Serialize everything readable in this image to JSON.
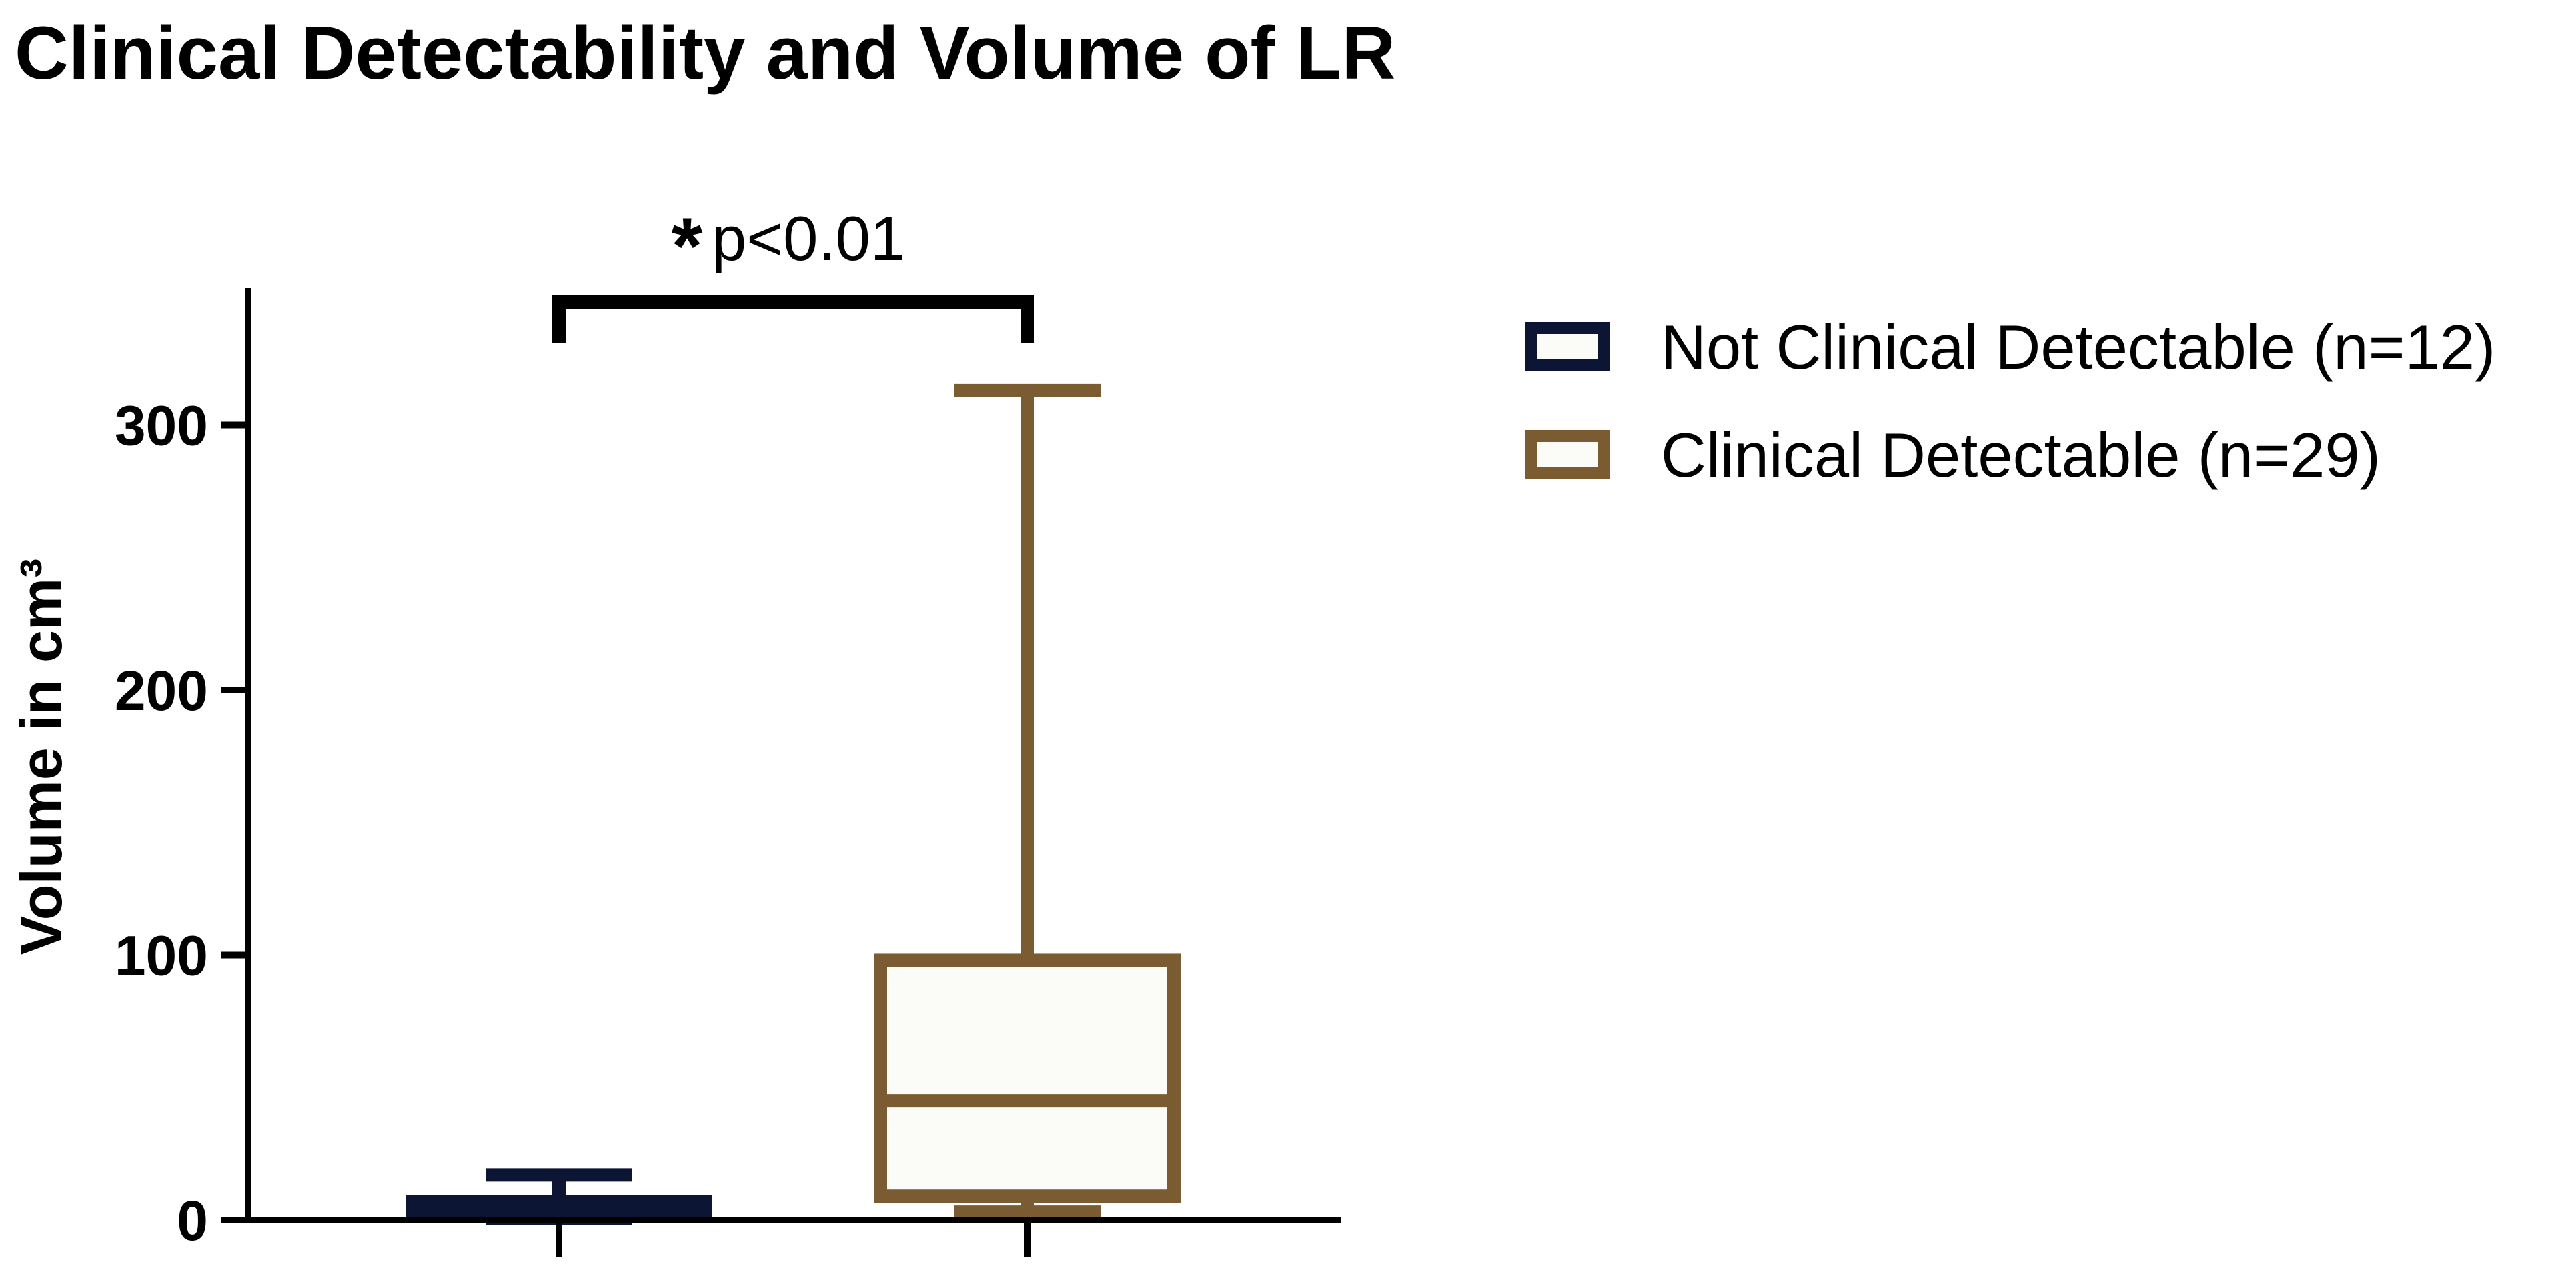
{
  "chart_data": {
    "type": "box",
    "title": "Clinical Detectability and Volume of LR",
    "xlabel": "",
    "ylabel": "Volume in cm³",
    "ylim": [
      0,
      350
    ],
    "yticks": [
      0,
      100,
      200,
      300
    ],
    "series": [
      {
        "name": "Not Clinical Detectable (n=12)",
        "color": "#0d1535",
        "min": 0.5,
        "q1": 2,
        "median": 4,
        "q3": 7,
        "max": 17
      },
      {
        "name": "Clinical Detectable (n=29)",
        "color": "#7b5c32",
        "min": 3,
        "q1": 9,
        "median": 45,
        "q3": 98,
        "max": 313
      }
    ],
    "annotation": {
      "star": "*",
      "text": "p<0.01"
    }
  }
}
